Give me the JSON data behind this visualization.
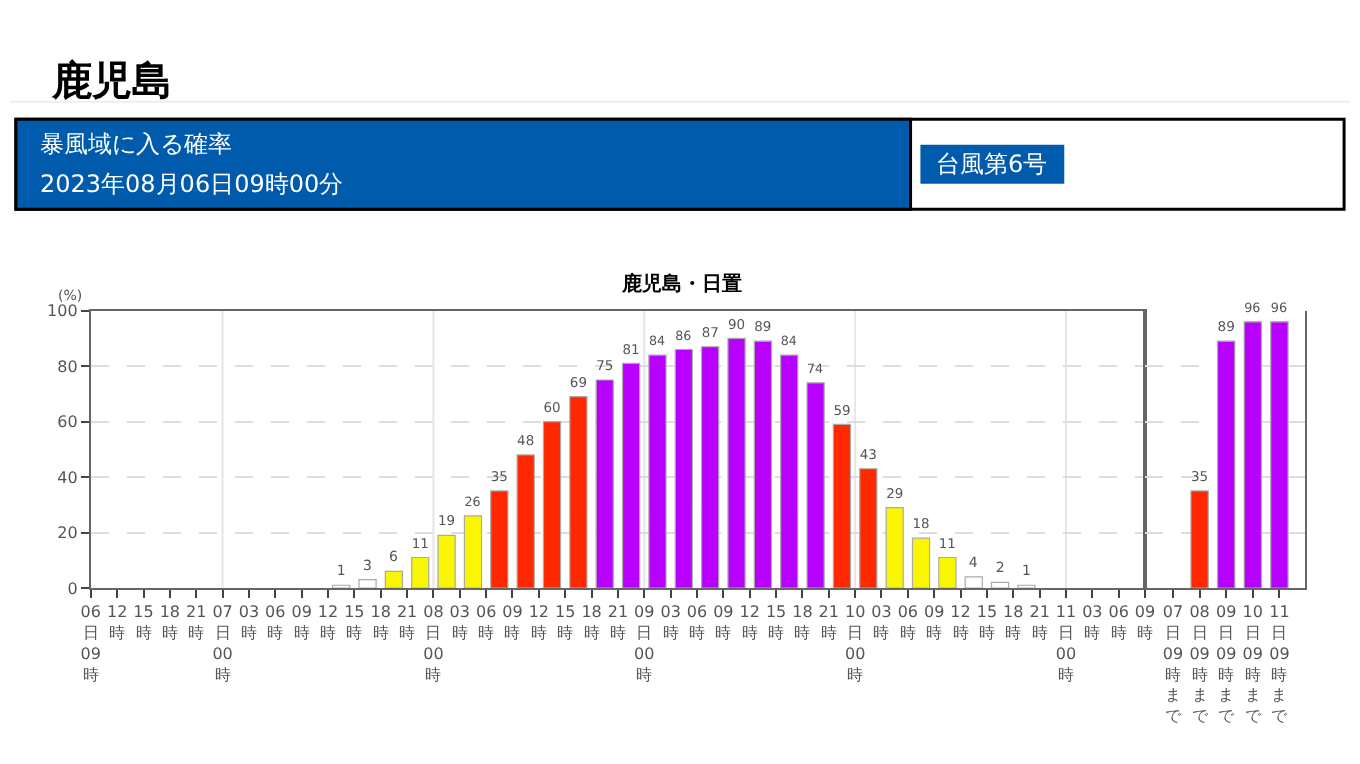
{
  "chart_data": [
    {
      "type": "other",
      "title": "鹿児島",
      "annotations": [
        "暴風域に入る確率",
        "2023年08月06日09時00分",
        "台風第6号"
      ]
    },
    {
      "type": "bar",
      "title": "鹿児島・日置",
      "ylabel": "(%)",
      "xlim": [
        "2023-08-06T09:00",
        "2023-08-11T09:00"
      ],
      "xticks": [
        {
          "value": "2023-08-06T09:00",
          "label": "06日09時"
        },
        {
          "value": "2023-08-06T12:00",
          "label": "12時"
        },
        {
          "value": "2023-08-06T15:00",
          "label": "15時"
        },
        {
          "value": "2023-08-06T18:00",
          "label": "18時"
        },
        {
          "value": "2023-08-06T21:00",
          "label": "21時"
        },
        {
          "value": "2023-08-07T00:00",
          "label": "07日00時"
        },
        {
          "value": "2023-08-07T03:00",
          "label": "03時"
        },
        {
          "value": "2023-08-07T06:00",
          "label": "06時"
        },
        {
          "value": "2023-08-07T09:00",
          "label": "09時"
        },
        {
          "value": "2023-08-07T12:00",
          "label": "12時"
        },
        {
          "value": "2023-08-07T15:00",
          "label": "15時"
        },
        {
          "value": "2023-08-07T18:00",
          "label": "18時"
        },
        {
          "value": "2023-08-07T21:00",
          "label": "21時"
        },
        {
          "value": "2023-08-08T00:00",
          "label": "08日00時"
        },
        {
          "value": "2023-08-08T03:00",
          "label": "03時"
        },
        {
          "value": "2023-08-08T06:00",
          "label": "06時"
        },
        {
          "value": "2023-08-08T09:00",
          "label": "09時"
        },
        {
          "value": "2023-08-08T12:00",
          "label": "12時"
        },
        {
          "value": "2023-08-08T15:00",
          "label": "15時"
        },
        {
          "value": "2023-08-08T18:00",
          "label": "18時"
        },
        {
          "value": "2023-08-08T21:00",
          "label": "21時"
        },
        {
          "value": "2023-08-09T00:00",
          "label": "09日00時"
        },
        {
          "value": "2023-08-09T03:00",
          "label": "03時"
        },
        {
          "value": "2023-08-09T06:00",
          "label": "06時"
        },
        {
          "value": "2023-08-09T09:00",
          "label": "09時"
        },
        {
          "value": "2023-08-09T12:00",
          "label": "12時"
        },
        {
          "value": "2023-08-09T15:00",
          "label": "15時"
        },
        {
          "value": "2023-08-09T18:00",
          "label": "18時"
        },
        {
          "value": "2023-08-09T21:00",
          "label": "21時"
        },
        {
          "value": "2023-08-10T00:00",
          "label": "10日00時"
        },
        {
          "value": "2023-08-10T03:00",
          "label": "03時"
        },
        {
          "value": "2023-08-10T06:00",
          "label": "06時"
        },
        {
          "value": "2023-08-10T09:00",
          "label": "09時"
        },
        {
          "value": "2023-08-10T12:00",
          "label": "12時"
        },
        {
          "value": "2023-08-10T15:00",
          "label": "15時"
        },
        {
          "value": "2023-08-10T18:00",
          "label": "18時"
        },
        {
          "value": "2023-08-10T21:00",
          "label": "21時"
        },
        {
          "value": "2023-08-11T00:00",
          "label": "11日00時"
        },
        {
          "value": "2023-08-11T03:00",
          "label": "03時"
        },
        {
          "value": "2023-08-11T06:00",
          "label": "06時"
        },
        {
          "value": "2023-08-11T09:00",
          "label": "09時"
        }
      ],
      "x": [
        "2023-08-07T13:30",
        "2023-08-07T16:30",
        "2023-08-07T19:30",
        "2023-08-07T22:30",
        "2023-08-08T01:30",
        "2023-08-08T04:30",
        "2023-08-08T07:30",
        "2023-08-08T10:30",
        "2023-08-08T13:30",
        "2023-08-08T16:30",
        "2023-08-08T19:30",
        "2023-08-08T22:30",
        "2023-08-09T01:30",
        "2023-08-09T04:30",
        "2023-08-09T07:30",
        "2023-08-09T10:30",
        "2023-08-09T13:30",
        "2023-08-09T16:30",
        "2023-08-09T19:30",
        "2023-08-09T22:30",
        "2023-08-10T01:30",
        "2023-08-10T04:30",
        "2023-08-10T07:30",
        "2023-08-10T10:30",
        "2023-08-10T13:30",
        "2023-08-10T16:30",
        "2023-08-10T19:30"
      ],
      "values": [
        1,
        3,
        6,
        11,
        19,
        26,
        35,
        48,
        60,
        69,
        75,
        81,
        84,
        86,
        87,
        90,
        89,
        84,
        74,
        59,
        43,
        29,
        18,
        11,
        4,
        2,
        1
      ],
      "colors": [
        "#ffffff",
        "#ffffff",
        "#faf500",
        "#faf500",
        "#faf500",
        "#faf500",
        "#ff2800",
        "#ff2800",
        "#ff2800",
        "#ff2800",
        "#b800ff",
        "#b800ff",
        "#b800ff",
        "#b800ff",
        "#b800ff",
        "#b800ff",
        "#b800ff",
        "#b800ff",
        "#b800ff",
        "#ff2800",
        "#ff2800",
        "#faf500",
        "#faf500",
        "#faf500",
        "#ffffff",
        "#ffffff",
        "#ffffff"
      ],
      "ylim": [
        0,
        100
      ],
      "yticks": [
        0,
        20,
        40,
        60,
        80,
        100
      ],
      "grid": "y",
      "data_labels": true,
      "ref_lines": [
        {
          "axis": "x",
          "value": "2023-08-07T00:00",
          "color": "#e6e6e6"
        },
        {
          "axis": "x",
          "value": "2023-08-08T00:00",
          "color": "#e6e6e6"
        },
        {
          "axis": "x",
          "value": "2023-08-09T00:00",
          "color": "#e6e6e6"
        },
        {
          "axis": "x",
          "value": "2023-08-10T00:00",
          "color": "#e6e6e6"
        },
        {
          "axis": "x",
          "value": "2023-08-11T00:00",
          "color": "#e6e6e6"
        }
      ]
    },
    {
      "type": "bar",
      "categories": [
        "07日09時まで",
        "08日09時まで",
        "09日09時まで",
        "10日09時まで",
        "11日09時まで"
      ],
      "values": [
        null,
        35,
        89,
        96,
        96
      ],
      "colors": [
        "#b800ff",
        "#ff2800",
        "#b800ff",
        "#b800ff",
        "#b800ff"
      ],
      "ylim": [
        0,
        100
      ],
      "yticks": [
        0,
        20,
        40,
        60,
        80,
        100
      ],
      "grid": "y",
      "data_labels": true,
      "tick_labels": "x"
    }
  ]
}
